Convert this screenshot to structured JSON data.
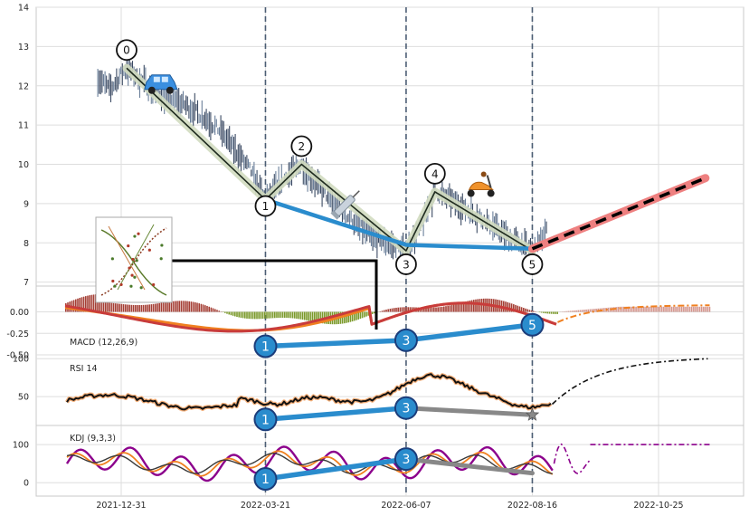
{
  "chart_data": {
    "type": "line",
    "x_ticks": [
      "2021-12-31",
      "2022-03-21",
      "2022-06-07",
      "2022-08-16",
      "2022-10-25"
    ],
    "price": {
      "ylim": [
        6.9,
        14
      ],
      "yticks": [
        7,
        8,
        9,
        10,
        11,
        12,
        13,
        14
      ],
      "ohlc_approx": [
        [
          "2021-12-18",
          12.2
        ],
        [
          "2021-12-25",
          11.9
        ],
        [
          "2021-12-31",
          12.3
        ],
        [
          "2022-01-03",
          12.45
        ],
        [
          "2022-01-15",
          12.0
        ],
        [
          "2022-01-25",
          11.7
        ],
        [
          "2022-02-05",
          11.5
        ],
        [
          "2022-02-15",
          11.2
        ],
        [
          "2022-02-25",
          10.8
        ],
        [
          "2022-03-05",
          10.3
        ],
        [
          "2022-03-12",
          9.9
        ],
        [
          "2022-03-21",
          9.1
        ],
        [
          "2022-04-02",
          9.7
        ],
        [
          "2022-04-10",
          10.0
        ],
        [
          "2022-04-22",
          9.3
        ],
        [
          "2022-05-05",
          8.7
        ],
        [
          "2022-05-20",
          8.1
        ],
        [
          "2022-06-07",
          7.8
        ],
        [
          "2022-06-15",
          8.4
        ],
        [
          "2022-06-23",
          9.3
        ],
        [
          "2022-07-05",
          9.0
        ],
        [
          "2022-07-20",
          8.6
        ],
        [
          "2022-08-01",
          8.2
        ],
        [
          "2022-08-16",
          7.8
        ],
        [
          "2022-08-24",
          8.3
        ]
      ],
      "wave_points": [
        {
          "label": "0",
          "x": "2022-01-03",
          "y": 12.45
        },
        {
          "label": "1",
          "x": "2022-03-21",
          "y": 9.1
        },
        {
          "label": "2",
          "x": "2022-04-10",
          "y": 10.0
        },
        {
          "label": "3",
          "x": "2022-06-07",
          "y": 7.8
        },
        {
          "label": "4",
          "x": "2022-06-23",
          "y": 9.3
        },
        {
          "label": "5",
          "x": "2022-08-16",
          "y": 7.8
        }
      ],
      "trend_line": [
        [
          "2022-03-21",
          9.1
        ],
        [
          "2022-06-07",
          7.95
        ],
        [
          "2022-08-16",
          7.85
        ]
      ],
      "forecast_line": [
        [
          "2022-08-16",
          7.85
        ],
        [
          "2022-11-20",
          9.65
        ]
      ]
    },
    "macd": {
      "label": "MACD (12,26,9)",
      "ylim": [
        -0.5,
        0.3
      ],
      "yticks": [
        "0.00",
        "-0.25",
        "-0.50"
      ],
      "divergence_points": [
        {
          "label": "1",
          "x": "2022-03-21",
          "y": -0.4
        },
        {
          "label": "3",
          "x": "2022-06-07",
          "y": -0.33
        },
        {
          "label": "5",
          "x": "2022-08-16",
          "y": -0.15
        }
      ]
    },
    "rsi": {
      "label": "RSI 14",
      "ylim": [
        12,
        105
      ],
      "yticks": [
        "100",
        "50"
      ],
      "divergence_points": [
        {
          "label": "1",
          "x": "2022-03-21",
          "y": 20
        },
        {
          "label": "3",
          "x": "2022-06-07",
          "y": 35
        }
      ],
      "grey_line": [
        [
          "2022-06-07",
          35
        ],
        [
          "2022-08-16",
          26
        ]
      ]
    },
    "kdj": {
      "label": "KDJ (9,3,3)",
      "ylim": [
        -35,
        150
      ],
      "yticks": [
        "100",
        "0"
      ],
      "divergence_points": [
        {
          "label": "1",
          "x": "2022-03-21",
          "y": 10
        },
        {
          "label": "3",
          "x": "2022-06-07",
          "y": 62
        }
      ],
      "grey_line": [
        [
          "2022-06-07",
          62
        ],
        [
          "2022-08-16",
          25
        ]
      ]
    },
    "markers": [
      {
        "icon": "car-icon",
        "x": "2022-01-22",
        "y": 12.0
      },
      {
        "icon": "scooter-icon",
        "x": "2022-07-18",
        "y": 9.4
      },
      {
        "icon": "needle-icon",
        "x": "2022-05-05",
        "y": 9.0
      }
    ],
    "colors": {
      "wave": "#d2dcc0",
      "trend": "#2a8ccd",
      "forecast": "#ee8080",
      "grey": "#888888",
      "macd_orange": "#f08020",
      "macd_red": "#c83c3c",
      "hist_red": "#a53f35",
      "hist_green": "#7b9a2b",
      "kdj_purple": "#8c008c"
    }
  }
}
